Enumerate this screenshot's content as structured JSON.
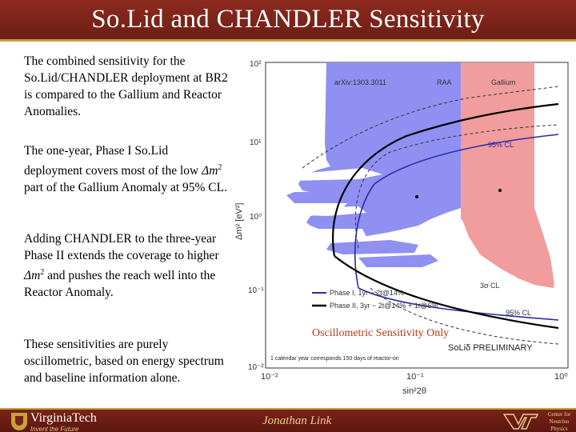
{
  "slide": {
    "title": "So.Lid and CHANDLER Sensitivity",
    "paragraphs": [
      {
        "text": "The combined sensitivity for the So.Lid/CHANDLER deployment at BR2 is compared to the Gallium and Reactor Anomalies."
      },
      {
        "pre": "The one-year, Phase I So.Lid deployment covers most of the low ",
        "dm": "Δm",
        "sup": "2",
        "post": " part of the Gallium Anomaly at 95% CL."
      },
      {
        "pre": "Adding CHANDLER to the three-year Phase II extends the coverage to higher ",
        "dm": "Δm",
        "sup": "2",
        "post": " and pushes the reach well into the Reactor Anomaly."
      },
      {
        "text": "These sensitivities are purely oscillometric, based on energy spectrum and baseline information alone."
      }
    ],
    "caption": "Oscillometric Sensitivity Only"
  },
  "plot": {
    "y_ticks": [
      "10²",
      "10¹",
      "10⁰",
      "10⁻¹",
      "10⁻²"
    ],
    "x_ticks": [
      "10⁻²",
      "10⁻¹",
      "10⁰"
    ],
    "y_label": "Δm² [eV²]",
    "x_label": "sin²2θ",
    "labels": {
      "arxiv": "arXiv:1303.3011",
      "raa": "RAA",
      "gallium": "Gallium",
      "cl95": "95% CL",
      "cl3sigma": "3σ CL",
      "cl95b": "95% CL",
      "preliminary": "SoLiδ PRELIMINARY",
      "footnote": "1 calendar year corresponds 150 days of reactor-on"
    },
    "legend": [
      {
        "label": "Phase I, 1yr − 2t@14%",
        "color": "#2a2aa8"
      },
      {
        "label": "Phase II, 3yr − 2t@14% + 1t@6%",
        "color": "#000000"
      }
    ],
    "colors": {
      "raa": "#8f90f2",
      "gallium": "#f19d9d"
    }
  },
  "footer": {
    "institution": "VirginiaTech",
    "tagline": "Invent the Future",
    "author": "Jonathan Link",
    "center": "Center for Neutrino Physics"
  }
}
